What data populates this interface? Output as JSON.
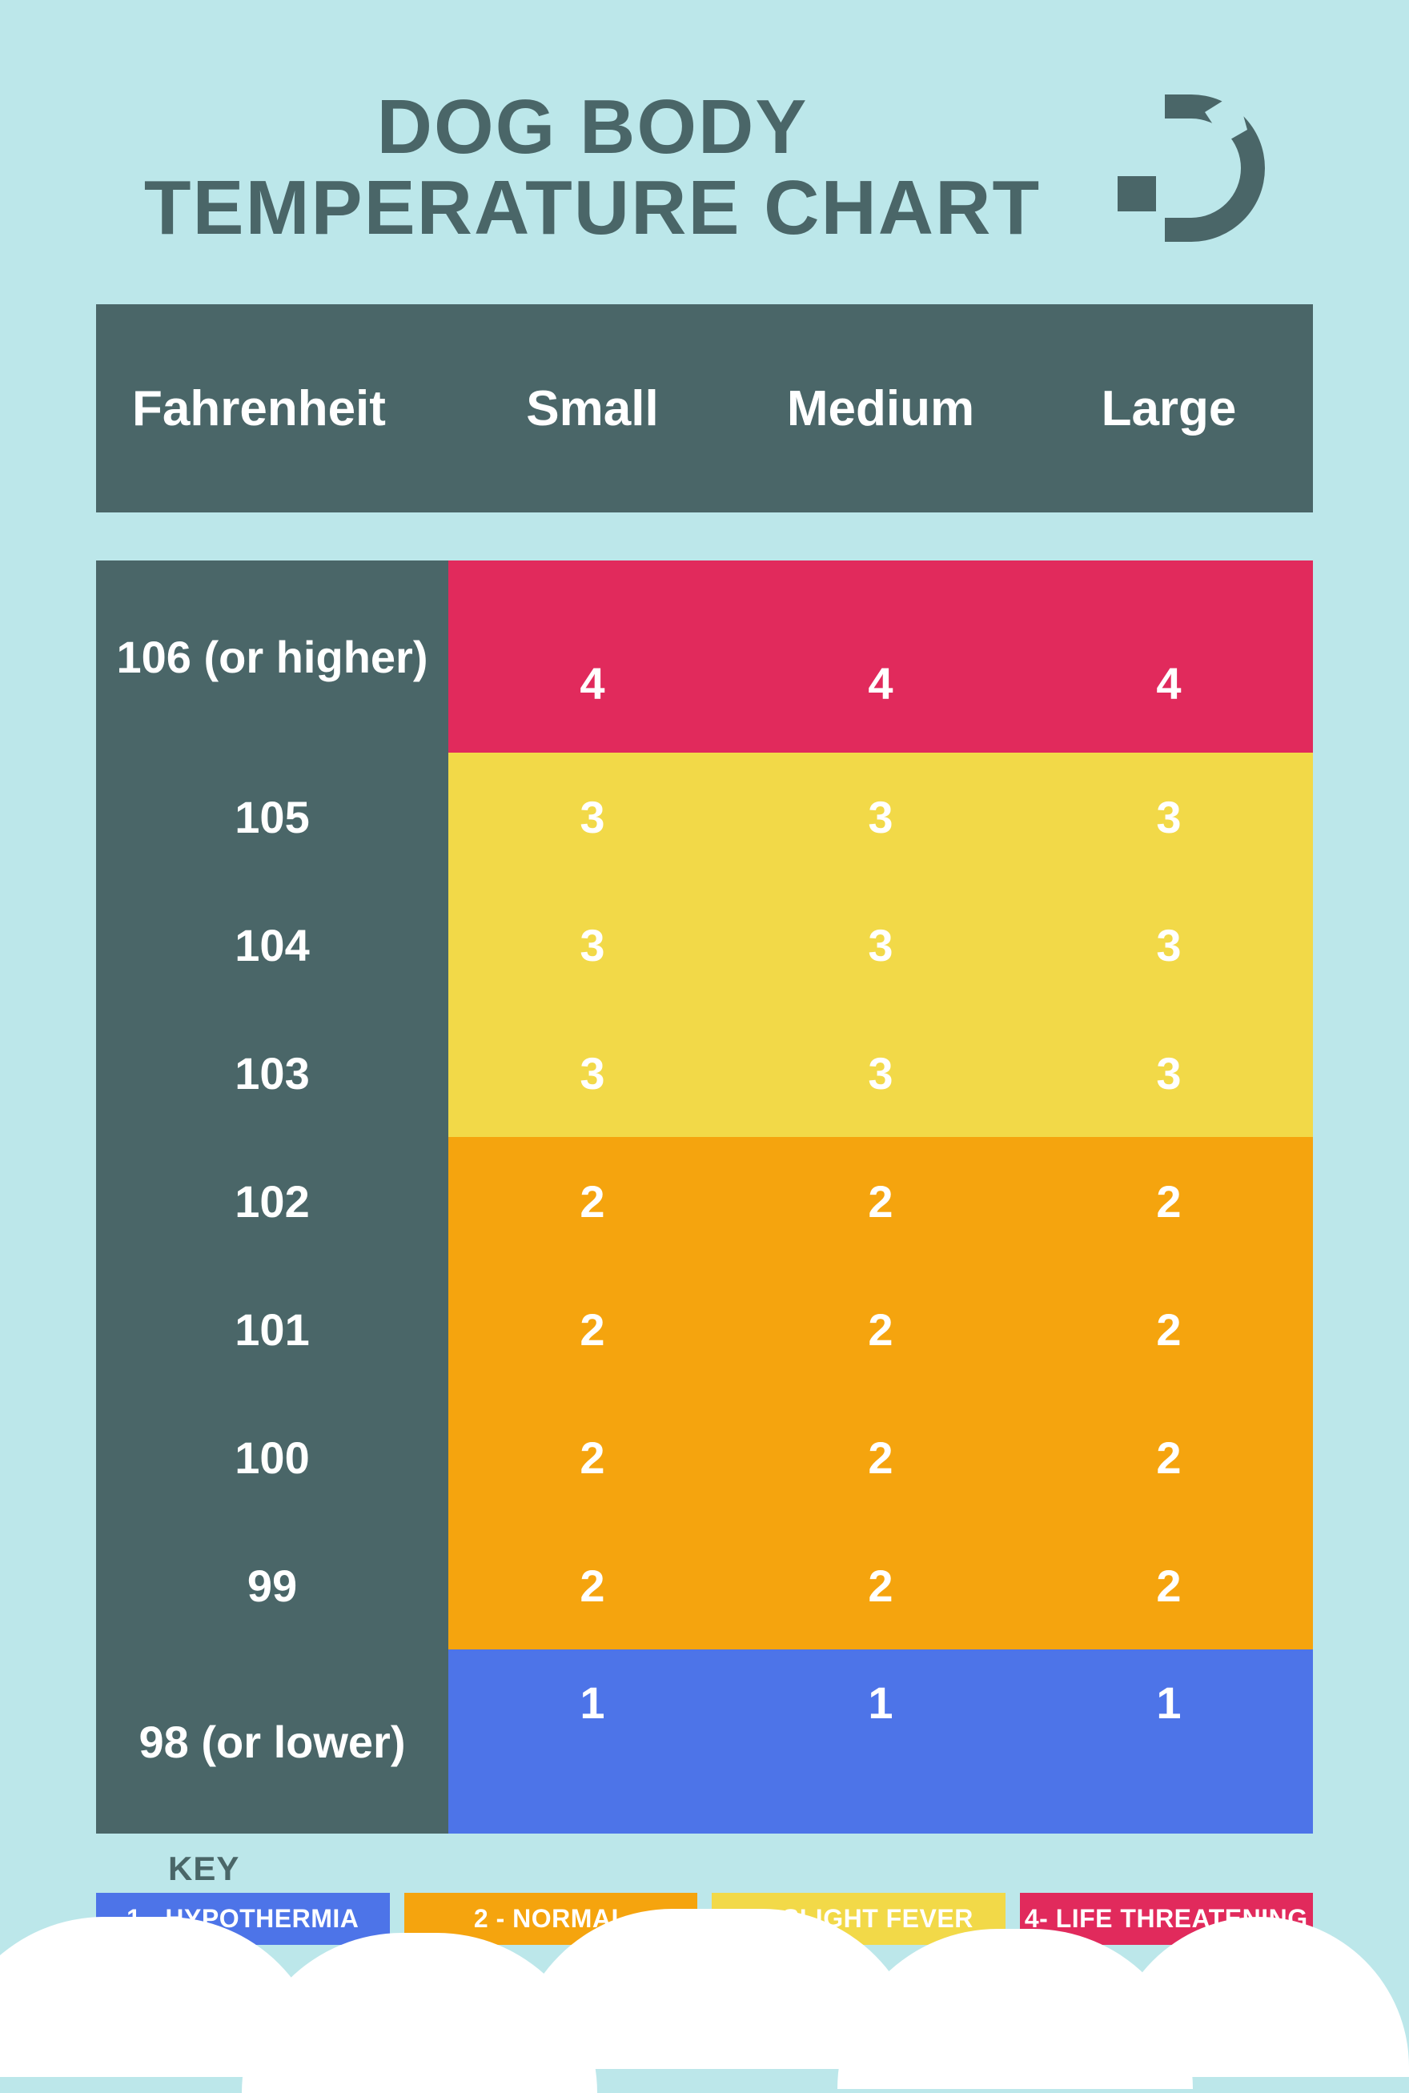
{
  "title": {
    "line1": "DOG BODY",
    "line2": "TEMPERATURE CHART"
  },
  "colors": {
    "background": "#bce7ea",
    "header_bg": "#4a6668",
    "title_text": "#4a6668",
    "header_text": "#ffffff",
    "value_text": "#ffffff",
    "hypothermia": "#4d74e8",
    "normal": "#f5a40e",
    "slight_fever": "#f2d948",
    "life_threatening": "#e12a5c",
    "cloud": "#ffffff"
  },
  "table": {
    "header_fontsize": 62,
    "label_fontsize": 56,
    "value_fontsize": 56,
    "columns": [
      "Fahrenheit",
      "Small",
      "Medium",
      "Large"
    ],
    "label_col_width": 440,
    "header_row_height": 260,
    "row_heights": {
      "first": 240,
      "normal": 160,
      "last": 230
    },
    "rows": [
      {
        "label": "106 (or higher)",
        "values": [
          4,
          4,
          4
        ],
        "height_key": "first"
      },
      {
        "label": "105",
        "values": [
          3,
          3,
          3
        ],
        "height_key": "normal"
      },
      {
        "label": "104",
        "values": [
          3,
          3,
          3
        ],
        "height_key": "normal"
      },
      {
        "label": "103",
        "values": [
          3,
          3,
          3
        ],
        "height_key": "normal"
      },
      {
        "label": "102",
        "values": [
          2,
          2,
          2
        ],
        "height_key": "normal"
      },
      {
        "label": "101",
        "values": [
          2,
          2,
          2
        ],
        "height_key": "normal"
      },
      {
        "label": "100",
        "values": [
          2,
          2,
          2
        ],
        "height_key": "normal"
      },
      {
        "label": "99",
        "values": [
          2,
          2,
          2
        ],
        "height_key": "normal"
      },
      {
        "label": "98 (or lower)",
        "values": [
          1,
          1,
          1
        ],
        "height_key": "last"
      }
    ],
    "level_colors": {
      "1": "#4d74e8",
      "2": "#f5a40e",
      "3": "#f2d948",
      "4": "#e12a5c"
    }
  },
  "key": {
    "title": "KEY",
    "title_fontsize": 42,
    "item_fontsize": 32,
    "items": [
      {
        "label": "1 - HYPOTHERMIA",
        "color": "#4d74e8"
      },
      {
        "label": "2 - NORMAL",
        "color": "#f5a40e"
      },
      {
        "label": "3 - SLIGHT FEVER",
        "color": "#f2d948"
      },
      {
        "label": "4- LIFE THREATENING",
        "color": "#e12a5c"
      }
    ]
  },
  "logo": {
    "fill": "#4a6668",
    "accent": "#bce7ea"
  }
}
